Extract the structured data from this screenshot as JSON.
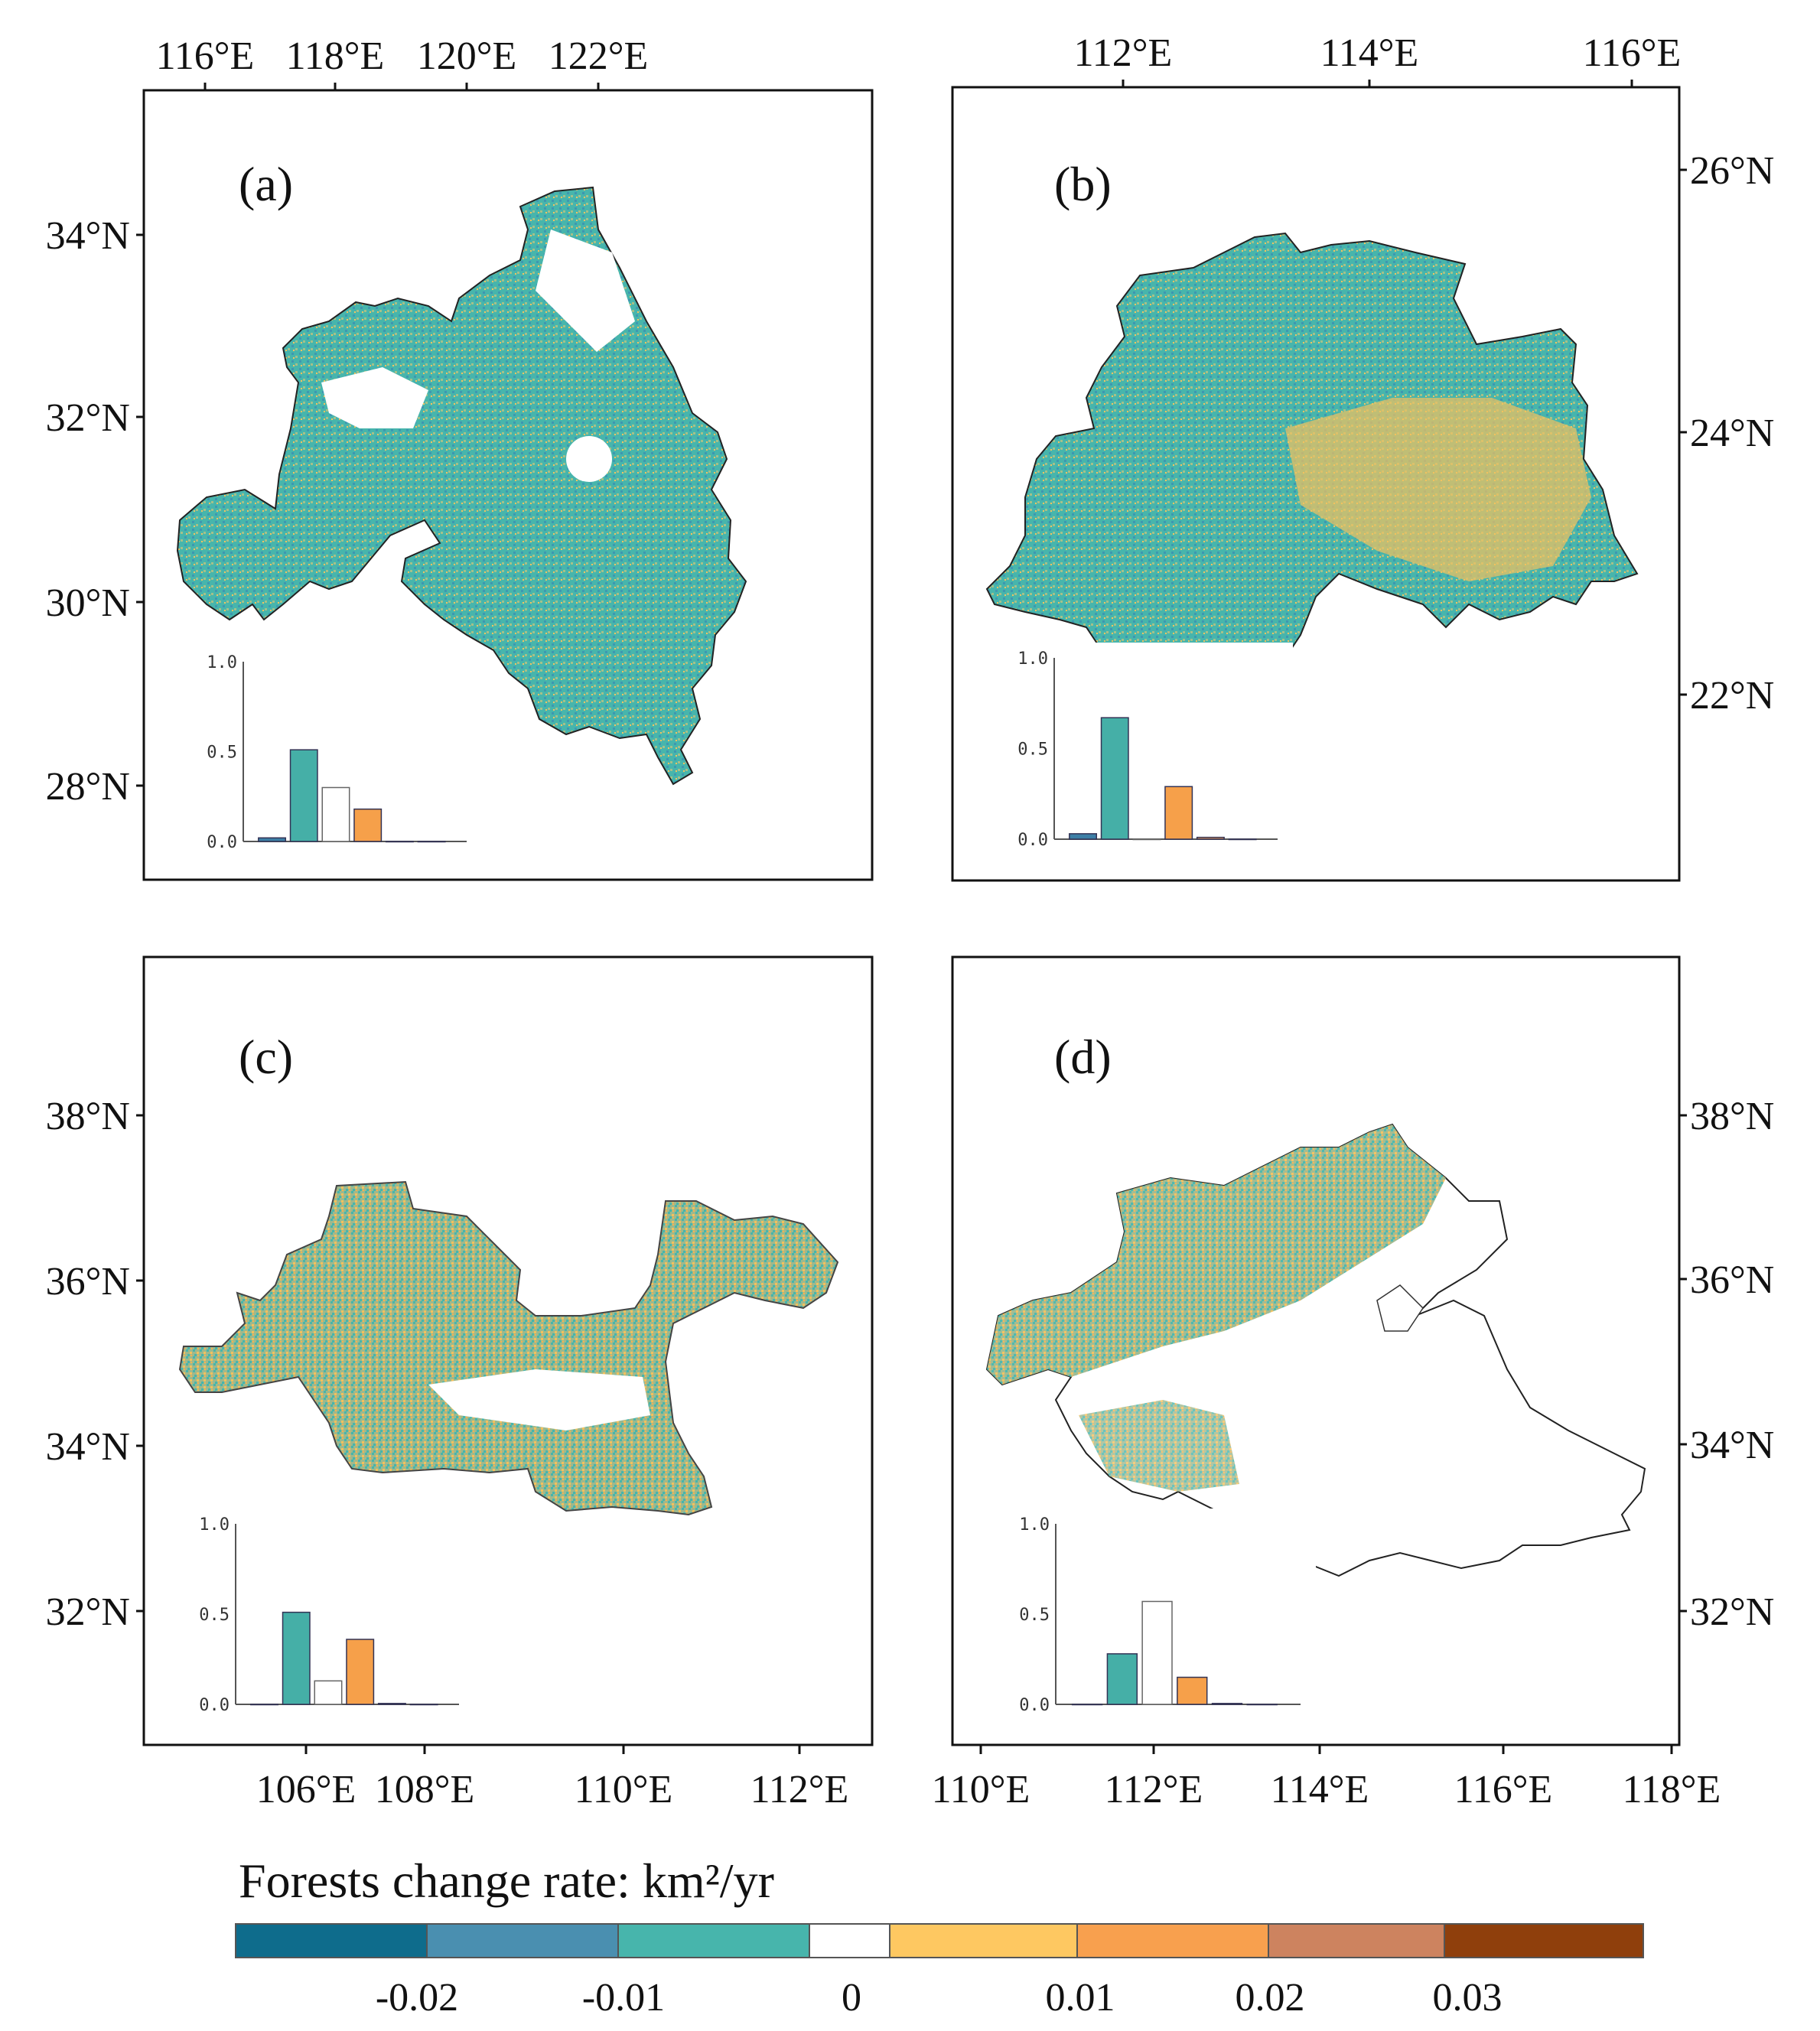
{
  "panels": [
    {
      "id": "a",
      "label": "(a)",
      "top_axis": [
        "116°E",
        "118°E",
        "120°E",
        "122°E"
      ],
      "bottom_axis": [],
      "left_axis": [
        "34°N",
        "32°N",
        "30°N",
        "28°N"
      ],
      "right_axis": [],
      "inset": {
        "yticks": [
          "1.0",
          "0.5",
          "0.0"
        ],
        "bars": [
          0.02,
          0.51,
          0.3,
          0.18,
          0,
          0
        ]
      }
    },
    {
      "id": "b",
      "label": "(b)",
      "top_axis": [
        "112°E",
        "114°E",
        "116°E"
      ],
      "bottom_axis": [],
      "left_axis": [],
      "right_axis": [
        "26°N",
        "24°N",
        "22°N"
      ],
      "inset": {
        "yticks": [
          "1.0",
          "0.5",
          "0.0"
        ],
        "bars": [
          0.03,
          0.67,
          0.0,
          0.29,
          0.01,
          0
        ]
      }
    },
    {
      "id": "c",
      "label": "(c)",
      "top_axis": [],
      "bottom_axis": [
        "106°E",
        "108°E",
        "110°E",
        "112°E"
      ],
      "left_axis": [
        "38°N",
        "36°N",
        "34°N",
        "32°N"
      ],
      "right_axis": [],
      "inset": {
        "yticks": [
          "1.0",
          "0.5",
          "0.0"
        ],
        "bars": [
          0,
          0.51,
          0.13,
          0.36,
          0.005,
          0
        ]
      }
    },
    {
      "id": "d",
      "label": "(d)",
      "top_axis": [],
      "bottom_axis": [
        "110°E",
        "112°E",
        "114°E",
        "116°E",
        "118°E"
      ],
      "left_axis": [],
      "right_axis": [
        "38°N",
        "36°N",
        "34°N",
        "32°N"
      ],
      "inset": {
        "yticks": [
          "1.0",
          "0.5",
          "0.0"
        ],
        "bars": [
          0,
          0.28,
          0.57,
          0.15,
          0.005,
          0
        ]
      }
    }
  ],
  "legend": {
    "title": "Forests change rate: km²/yr",
    "colors": [
      "#0e6c8c",
      "#4a8fb0",
      "#47b5ac",
      "#ffffff",
      "#fec861",
      "#f8a04e",
      "#cd835f",
      "#8f3f0c"
    ],
    "tick_labels": [
      "-0.02",
      "-0.01",
      "0",
      "0.01",
      "0.02",
      "0.03"
    ]
  },
  "bar_colors": [
    "#3d7fa6",
    "#45afa7",
    "#ffffff",
    "#f6a04a",
    "#f5a25a",
    "#cd835f"
  ]
}
